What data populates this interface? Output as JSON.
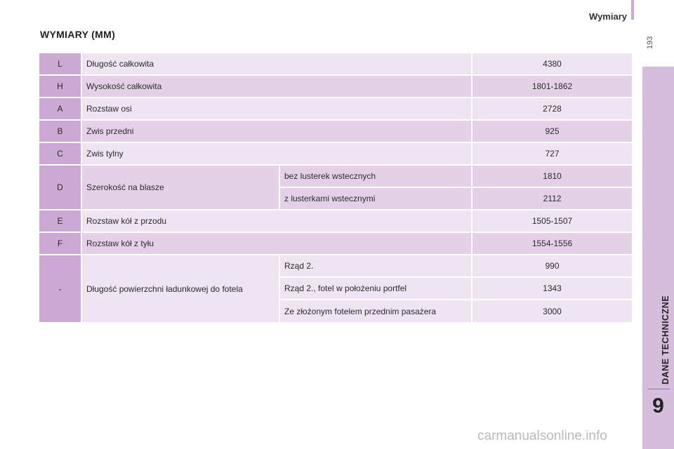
{
  "header": {
    "section_title": "Wymiary",
    "page_number": "193"
  },
  "side_tab": {
    "label": "DANE TECHNICZNE",
    "chapter": "9"
  },
  "heading": "WYMIARY (MM)",
  "rows": [
    {
      "code": "L",
      "desc": "Długość całkowita",
      "value": "4380"
    },
    {
      "code": "H",
      "desc": "Wysokość całkowita",
      "value": "1801-1862"
    },
    {
      "code": "A",
      "desc": "Rozstaw osi",
      "value": "2728"
    },
    {
      "code": "B",
      "desc": "Zwis przedni",
      "value": "925"
    },
    {
      "code": "C",
      "desc": "Zwis tylny",
      "value": "727"
    },
    {
      "code": "D",
      "desc": "Szerokość na blasze",
      "subs": [
        {
          "label": "bez lusterek wstecznych",
          "value": "1810"
        },
        {
          "label": "z lusterkami wstecznymi",
          "value": "2112"
        }
      ]
    },
    {
      "code": "E",
      "desc": "Rozstaw kół z przodu",
      "value": "1505-1507"
    },
    {
      "code": "F",
      "desc": "Rozstaw kół z tyłu",
      "value": "1554-1556"
    },
    {
      "code": "-",
      "desc": "Długość powierzchni ładunkowej do fotela",
      "subs": [
        {
          "label": "Rząd 2.",
          "value": "990"
        },
        {
          "label": "Rząd 2., fotel w położeniu portfel",
          "value": "1343"
        },
        {
          "label": "Ze złożonym fotelem przednim pasażera",
          "value": "3000"
        }
      ]
    }
  ],
  "footer": {
    "watermark": "carmanualsonline.info"
  },
  "colors": {
    "code_cell": "#cba9d2",
    "row_dark": "#e4d1e8",
    "row_light": "#efe4f1",
    "tab": "#d5bddc"
  }
}
